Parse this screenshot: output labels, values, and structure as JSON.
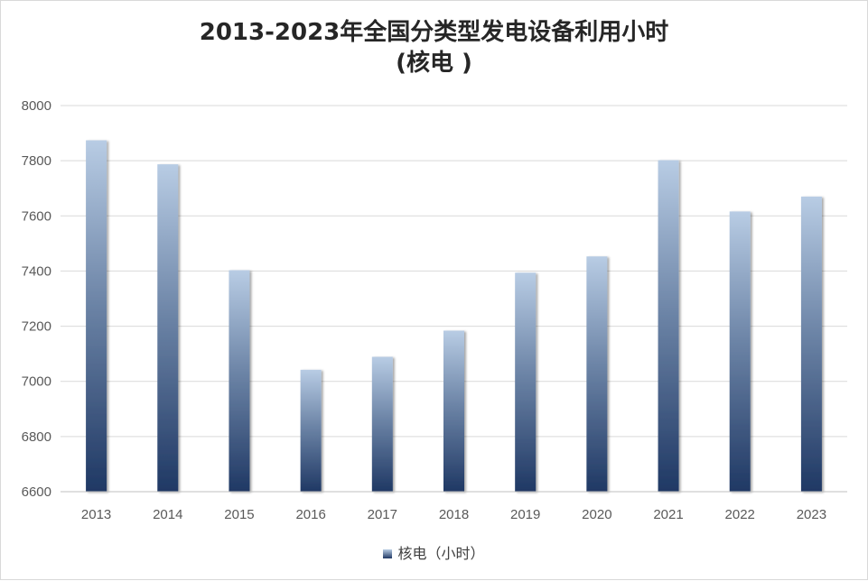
{
  "chart_data": {
    "type": "bar",
    "title_line1": "2013-2023年全国分类型发电设备利用小时",
    "title_line2": "(核电 )",
    "categories": [
      "2013",
      "2014",
      "2015",
      "2016",
      "2017",
      "2018",
      "2019",
      "2020",
      "2021",
      "2022",
      "2023"
    ],
    "series": [
      {
        "name": "核电（小时）",
        "values": [
          7874,
          7787,
          7403,
          7042,
          7089,
          7184,
          7394,
          7453,
          7802,
          7616,
          7670
        ]
      }
    ],
    "ylim": [
      6600,
      8000
    ],
    "yticks": [
      6600,
      6800,
      7000,
      7200,
      7400,
      7600,
      7800,
      8000
    ],
    "grid": true,
    "legend_position": "bottom",
    "colors": {
      "bar_top": "#b8cce4",
      "bar_bottom": "#1f3864",
      "grid": "#d9d9d9",
      "text": "#595959"
    }
  }
}
